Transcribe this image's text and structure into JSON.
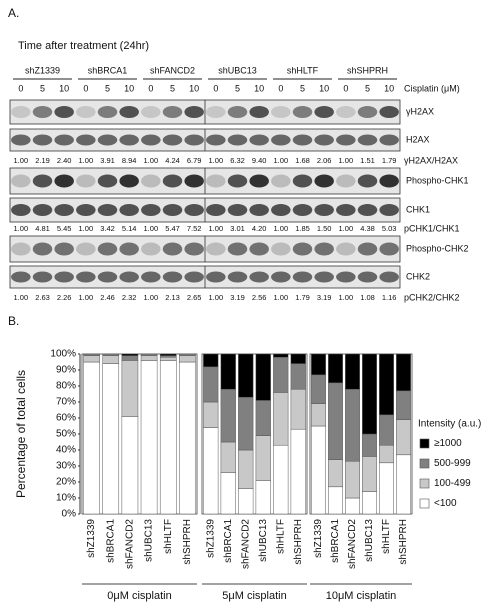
{
  "panel_a": {
    "label": "A.",
    "title": "Time after treatment (24hr)",
    "groups": [
      "shZ1339",
      "shBRCA1",
      "shFANCD2",
      "shUBC13",
      "shHLTF",
      "shSHPRH"
    ],
    "doses": [
      "0",
      "5",
      "10"
    ],
    "dose_label": "Cisplatin (μM)",
    "blots": [
      "γH2AX",
      "H2AX",
      "Phospho-CHK1",
      "CHK1",
      "Phospho-CHK2",
      "CHK2"
    ],
    "ratios": [
      {
        "label": "γH2AX/H2AX",
        "values": [
          "1.00",
          "2.19",
          "2.40",
          "1.00",
          "3.91",
          "8.94",
          "1.00",
          "4.24",
          "6.79",
          "1.00",
          "6.32",
          "9.40",
          "1.00",
          "1.68",
          "2.06",
          "1.00",
          "1.51",
          "1.79"
        ]
      },
      {
        "label": "pCHK1/CHK1",
        "values": [
          "1.00",
          "4.81",
          "5.45",
          "1.00",
          "3.42",
          "5.14",
          "1.00",
          "5.47",
          "7.52",
          "1.00",
          "3.01",
          "4.20",
          "1.00",
          "1.85",
          "1.50",
          "1.00",
          "4.38",
          "5.03"
        ]
      },
      {
        "label": "pCHK2/CHK2",
        "values": [
          "1.00",
          "2.63",
          "2.26",
          "1.00",
          "2.46",
          "2.32",
          "1.00",
          "2.13",
          "2.65",
          "1.00",
          "3.19",
          "2.56",
          "1.00",
          "1.79",
          "3.19",
          "1.00",
          "1.08",
          "1.16"
        ]
      }
    ]
  },
  "panel_b_label": "B.",
  "chart_data": {
    "type": "bar",
    "stacked": true,
    "y_label": "Percentage of total cells",
    "categories": [
      "shZ1339",
      "shBRCA1",
      "shFANCD2",
      "shUBC13",
      "shHLTF",
      "shSHPRH",
      "shZ1339",
      "shBRCA1",
      "shFANCD2",
      "shUBC13",
      "shHLTF",
      "shSHPRH",
      "shZ1339",
      "shBRCA1",
      "shFANCD2",
      "shUBC13",
      "shHLTF",
      "shSHPRH"
    ],
    "group_labels": [
      "0μM cisplatin",
      "5μM cisplatin",
      "10μM cisplatin"
    ],
    "legend_title": "Intensity (a.u.)",
    "series": [
      {
        "name": "<100",
        "color": "#ffffff",
        "values": [
          95,
          94,
          61,
          96,
          96,
          95,
          54,
          26,
          16,
          21,
          43,
          53,
          55,
          17,
          10,
          14,
          32,
          37
        ]
      },
      {
        "name": "100-499",
        "color": "#c8c8c8",
        "values": [
          4,
          5,
          35,
          3,
          2,
          4,
          16,
          19,
          24,
          28,
          33,
          25,
          14,
          17,
          23,
          22,
          11,
          22
        ]
      },
      {
        "name": "500-999",
        "color": "#808080",
        "values": [
          1,
          1,
          3,
          1,
          1,
          1,
          22,
          33,
          33,
          22,
          22,
          16,
          18,
          48,
          45,
          14,
          19,
          18
        ]
      },
      {
        "name": "≥1000",
        "color": "#000000",
        "values": [
          0,
          0,
          1,
          0,
          1,
          0,
          8,
          22,
          27,
          29,
          2,
          6,
          13,
          18,
          22,
          50,
          38,
          23
        ]
      }
    ],
    "ylim": [
      0,
      100
    ],
    "yticks": [
      {
        "value": 0,
        "label": "0%"
      },
      {
        "value": 10,
        "label": "10%"
      },
      {
        "value": 20,
        "label": "20%"
      },
      {
        "value": 30,
        "label": "30%"
      },
      {
        "value": 40,
        "label": "40%"
      },
      {
        "value": 50,
        "label": "50%"
      },
      {
        "value": 60,
        "label": "60%"
      },
      {
        "value": 70,
        "label": "70%"
      },
      {
        "value": 80,
        "label": "80%"
      },
      {
        "value": 90,
        "label": "90%"
      },
      {
        "value": 100,
        "label": "100%"
      }
    ]
  }
}
